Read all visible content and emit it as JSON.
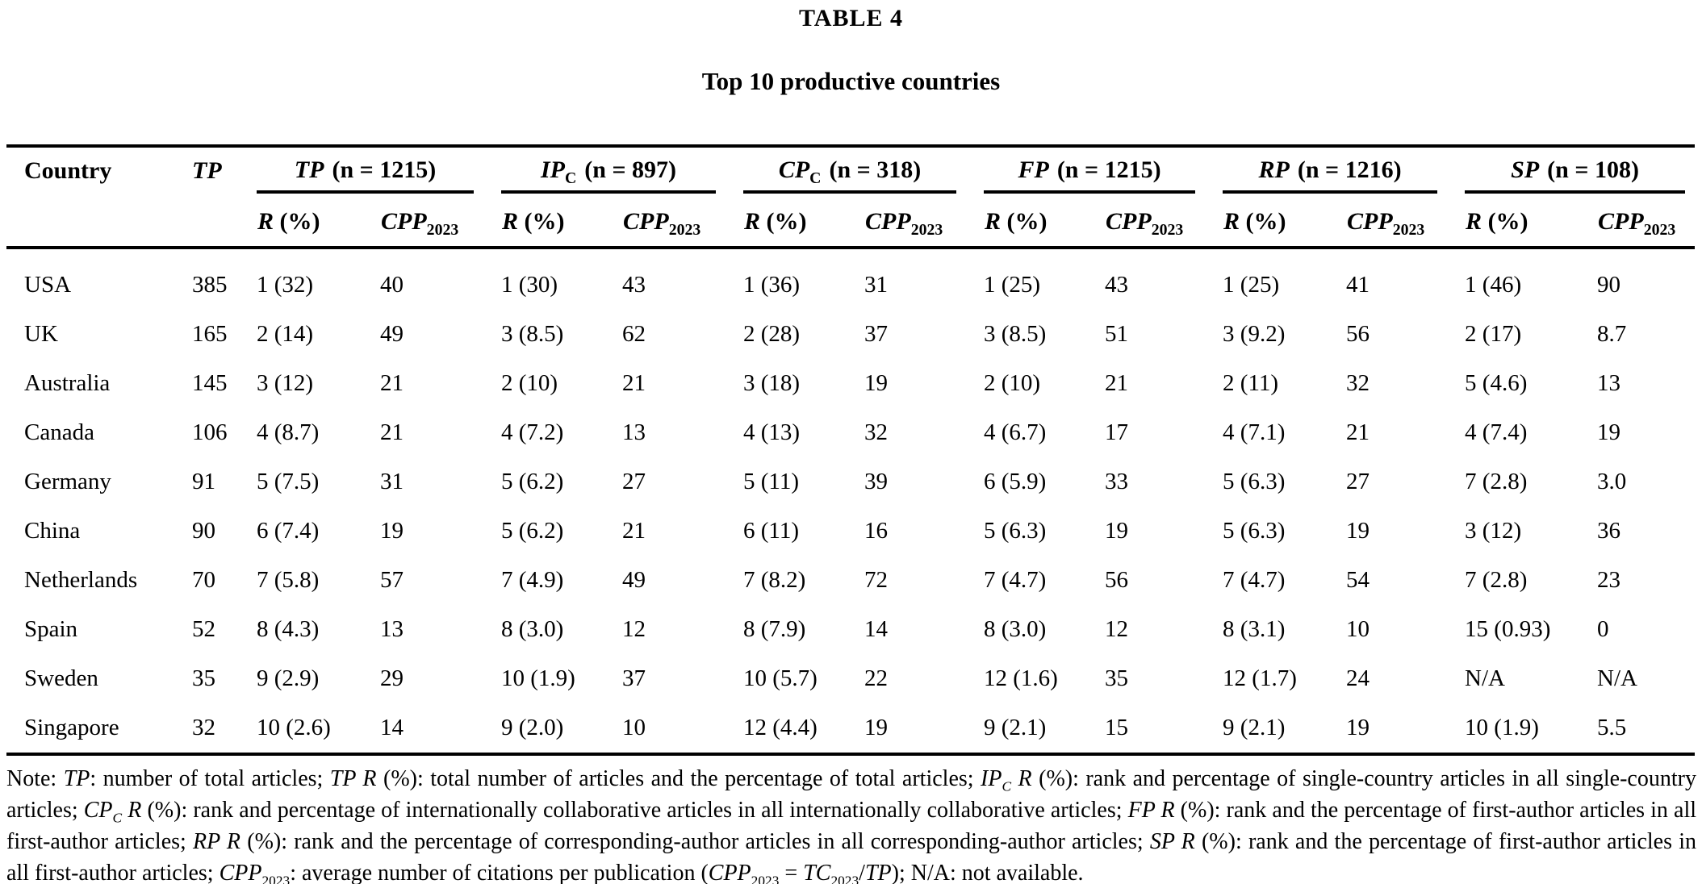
{
  "page": {
    "label": "TABLE 4",
    "title": "Top 10 productive countries"
  },
  "table": {
    "header": {
      "country": "Country",
      "tp": "TP",
      "r": "R",
      "r_pct": "(%)",
      "cpp": "CPP",
      "cpp_sub": "2023",
      "groups": [
        {
          "abbr": "TP",
          "sub": "",
          "n": "(n = 1215)"
        },
        {
          "abbr": "IP",
          "sub": "C",
          "n": "(n = 897)"
        },
        {
          "abbr": "CP",
          "sub": "C",
          "n": "(n = 318)"
        },
        {
          "abbr": "FP",
          "sub": "",
          "n": "(n = 1215)"
        },
        {
          "abbr": "RP",
          "sub": "",
          "n": "(n = 1216)"
        },
        {
          "abbr": "SP",
          "sub": "",
          "n": "(n = 108)"
        }
      ]
    },
    "rows": [
      {
        "country": "USA",
        "tp": "385",
        "cells": [
          "1 (32)",
          "40",
          "1 (30)",
          "43",
          "1 (36)",
          "31",
          "1 (25)",
          "43",
          "1 (25)",
          "41",
          "1 (46)",
          "90"
        ]
      },
      {
        "country": "UK",
        "tp": "165",
        "cells": [
          "2 (14)",
          "49",
          "3 (8.5)",
          "62",
          "2 (28)",
          "37",
          "3 (8.5)",
          "51",
          "3 (9.2)",
          "56",
          "2 (17)",
          "8.7"
        ]
      },
      {
        "country": "Australia",
        "tp": "145",
        "cells": [
          "3 (12)",
          "21",
          "2 (10)",
          "21",
          "3 (18)",
          "19",
          "2 (10)",
          "21",
          "2 (11)",
          "32",
          "5 (4.6)",
          "13"
        ]
      },
      {
        "country": "Canada",
        "tp": "106",
        "cells": [
          "4 (8.7)",
          "21",
          "4 (7.2)",
          "13",
          "4 (13)",
          "32",
          "4 (6.7)",
          "17",
          "4 (7.1)",
          "21",
          "4 (7.4)",
          "19"
        ]
      },
      {
        "country": "Germany",
        "tp": "91",
        "cells": [
          "5 (7.5)",
          "31",
          "5 (6.2)",
          "27",
          "5 (11)",
          "39",
          "6 (5.9)",
          "33",
          "5 (6.3)",
          "27",
          "7 (2.8)",
          "3.0"
        ]
      },
      {
        "country": "China",
        "tp": "90",
        "cells": [
          "6 (7.4)",
          "19",
          "5 (6.2)",
          "21",
          "6 (11)",
          "16",
          "5 (6.3)",
          "19",
          "5 (6.3)",
          "19",
          "3 (12)",
          "36"
        ]
      },
      {
        "country": "Netherlands",
        "tp": "70",
        "cells": [
          "7 (5.8)",
          "57",
          "7 (4.9)",
          "49",
          "7 (8.2)",
          "72",
          "7 (4.7)",
          "56",
          "7 (4.7)",
          "54",
          "7 (2.8)",
          "23"
        ]
      },
      {
        "country": "Spain",
        "tp": "52",
        "cells": [
          "8 (4.3)",
          "13",
          "8 (3.0)",
          "12",
          "8 (7.9)",
          "14",
          "8 (3.0)",
          "12",
          "8 (3.1)",
          "10",
          "15 (0.93)",
          "0"
        ]
      },
      {
        "country": "Sweden",
        "tp": "35",
        "cells": [
          "9 (2.9)",
          "29",
          "10 (1.9)",
          "37",
          "10 (5.7)",
          "22",
          "12 (1.6)",
          "35",
          "12 (1.7)",
          "24",
          "N/A",
          "N/A"
        ]
      },
      {
        "country": "Singapore",
        "tp": "32",
        "cells": [
          "10 (2.6)",
          "14",
          "9 (2.0)",
          "10",
          "12 (4.4)",
          "19",
          "9 (2.1)",
          "15",
          "9 (2.1)",
          "19",
          "10 (1.9)",
          "5.5"
        ]
      }
    ],
    "note_segments": [
      {
        "t": "Note: "
      },
      {
        "t": "TP",
        "i": true
      },
      {
        "t": ": number of total articles; "
      },
      {
        "t": "TP R",
        "i": true
      },
      {
        "t": " (%): total number of articles and the percentage of total articles; "
      },
      {
        "t": "IP",
        "i": true
      },
      {
        "t": "C",
        "i": true,
        "s": true
      },
      {
        "t": " R",
        "i": true
      },
      {
        "t": " (%): rank and percentage of single-country articles in all single-country articles; "
      },
      {
        "t": "CP",
        "i": true
      },
      {
        "t": "C",
        "i": true,
        "s": true
      },
      {
        "t": " R",
        "i": true
      },
      {
        "t": " (%): rank and percentage of internationally collaborative articles in all internationally collaborative articles; "
      },
      {
        "t": "FP R",
        "i": true
      },
      {
        "t": " (%): rank and the percentage of first-author articles in all first-author articles; "
      },
      {
        "t": "RP R",
        "i": true
      },
      {
        "t": " (%): rank and the percentage of corresponding-author articles in all corresponding-author articles; "
      },
      {
        "t": "SP R",
        "i": true
      },
      {
        "t": " (%): rank and the percentage of first-author articles in all first-author articles; "
      },
      {
        "t": "CPP",
        "i": true
      },
      {
        "t": "2023",
        "s": true
      },
      {
        "t": ": average number of citations per publication ("
      },
      {
        "t": "CPP",
        "i": true
      },
      {
        "t": "2023",
        "s": true
      },
      {
        "t": " = "
      },
      {
        "t": "TC",
        "i": true
      },
      {
        "t": "2023",
        "s": true
      },
      {
        "t": "/"
      },
      {
        "t": "TP",
        "i": true
      },
      {
        "t": "); N/A: not available."
      }
    ]
  }
}
